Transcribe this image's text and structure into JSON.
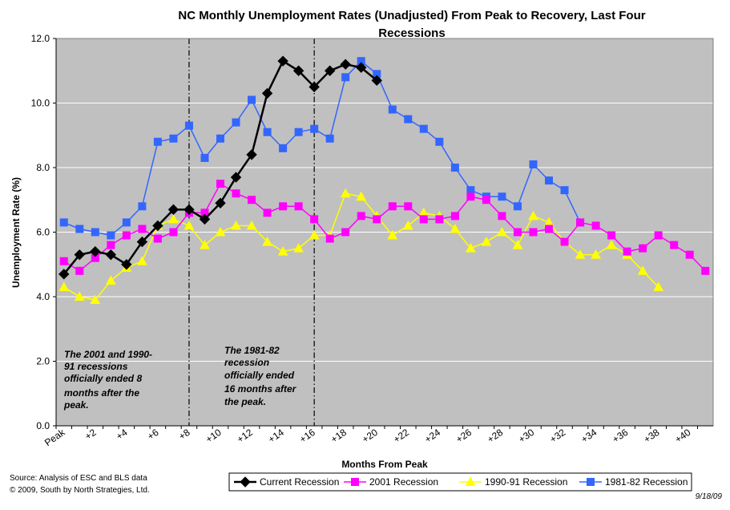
{
  "chart_data": {
    "type": "line",
    "title": "NC Monthly Unemployment Rates (Unadjusted) From Peak to Recovery, Last Four Recessions",
    "title_lines": [
      "NC Monthly Unemployment Rates (Unadjusted) From Peak to Recovery, Last Four",
      "Recessions"
    ],
    "xlabel": "Months From Peak",
    "ylabel": "Unemployment Rate (%)",
    "ylim": [
      0,
      12
    ],
    "yticks": [
      "0.0",
      "2.0",
      "4.0",
      "6.0",
      "8.0",
      "10.0",
      "12.0"
    ],
    "x_categories": [
      "Peak",
      "+1",
      "+2",
      "+3",
      "+4",
      "+5",
      "+6",
      "+7",
      "+8",
      "+9",
      "+10",
      "+11",
      "+12",
      "+13",
      "+14",
      "+15",
      "+16",
      "+17",
      "+18",
      "+19",
      "+20",
      "+21",
      "+22",
      "+23",
      "+24",
      "+25",
      "+26",
      "+27",
      "+28",
      "+29",
      "+30",
      "+31",
      "+32",
      "+33",
      "+34",
      "+35",
      "+36",
      "+37",
      "+38",
      "+39",
      "+40",
      "+41"
    ],
    "x_tick_labels": [
      "Peak",
      "+2",
      "+4",
      "+6",
      "+8",
      "+10",
      "+12",
      "+14",
      "+16",
      "+18",
      "+20",
      "+22",
      "+24",
      "+26",
      "+28",
      "+30",
      "+32",
      "+34",
      "+36",
      "+38",
      "+40"
    ],
    "grid": "horizontal",
    "plot_background": "#c0c0c0",
    "legend_position": "bottom",
    "series": [
      {
        "name": "Current Recession",
        "color": "#000000",
        "marker": "diamond",
        "values": [
          4.7,
          5.3,
          5.4,
          5.3,
          5.0,
          5.7,
          6.2,
          6.7,
          6.7,
          6.4,
          6.9,
          7.7,
          8.4,
          10.3,
          11.3,
          11.0,
          10.5,
          11.0,
          11.2,
          11.1,
          10.7
        ]
      },
      {
        "name": "2001 Recession",
        "color": "#ff00ff",
        "marker": "square",
        "values": [
          5.1,
          4.8,
          5.2,
          5.6,
          5.9,
          6.1,
          5.8,
          6.0,
          6.6,
          6.6,
          7.5,
          7.2,
          7.0,
          6.6,
          6.8,
          6.8,
          6.4,
          5.8,
          6.0,
          6.5,
          6.4,
          6.8,
          6.8,
          6.4,
          6.4,
          6.5,
          7.1,
          7.0,
          6.5,
          6.0,
          6.0,
          6.1,
          5.7,
          6.3,
          6.2,
          5.9,
          5.4,
          5.5,
          5.9,
          5.6,
          5.3,
          4.8
        ]
      },
      {
        "name": "1990-91 Recession",
        "color": "#ffff00",
        "marker": "triangle",
        "values": [
          4.3,
          4.0,
          3.9,
          4.5,
          4.9,
          5.1,
          6.2,
          6.4,
          6.2,
          5.6,
          6.0,
          6.2,
          6.2,
          5.7,
          5.4,
          5.5,
          5.9,
          5.9,
          7.2,
          7.1,
          6.5,
          5.9,
          6.2,
          6.6,
          6.5,
          6.1,
          5.5,
          5.7,
          6.0,
          5.6,
          6.5,
          6.3,
          5.7,
          5.3,
          5.3,
          5.6,
          5.3,
          4.8,
          4.3
        ]
      },
      {
        "name": "1981-82 Recession",
        "color": "#3366ff",
        "marker": "square",
        "values": [
          6.3,
          6.1,
          6.0,
          5.9,
          6.3,
          6.8,
          8.8,
          8.9,
          9.3,
          8.3,
          8.9,
          9.4,
          10.1,
          9.1,
          8.6,
          9.1,
          9.2,
          8.9,
          10.8,
          11.3,
          10.9,
          9.8,
          9.5,
          9.2,
          8.8,
          8.0,
          7.3,
          7.1,
          7.1,
          6.8,
          8.1,
          7.6,
          7.3,
          6.3
        ]
      }
    ],
    "vertical_markers": [
      {
        "at": "+8",
        "style": "dash-dot"
      },
      {
        "at": "+16",
        "style": "dash-dot"
      }
    ],
    "annotations": [
      {
        "lines": [
          "The 2001 and 1990-",
          "91 recessions",
          "officially ended 8",
          "months after the",
          "peak."
        ]
      },
      {
        "lines": [
          "The 1981-82",
          "recession",
          "officially ended",
          "16 months after",
          "the peak."
        ]
      }
    ]
  },
  "footer": {
    "source_line": "Source:  Analysis of  ESC and BLS data",
    "copyright_line": "© 2009, South by North Strategies, Ltd.",
    "date": "9/18/09"
  }
}
